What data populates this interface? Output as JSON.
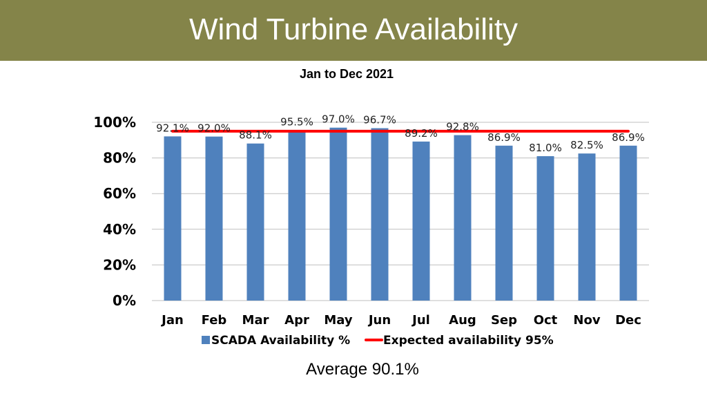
{
  "slide": {
    "title": "Wind Turbine Availability",
    "average_text": "Average 90.1%"
  },
  "colors": {
    "title_bar": "#848449",
    "bar": "#4F81BD",
    "expected_line": "#FF0000",
    "grid": "#BFBFBF"
  },
  "chart_data": {
    "type": "bar",
    "title": "Jan to Dec 2021",
    "xlabel": "",
    "ylabel": "",
    "categories": [
      "Jan",
      "Feb",
      "Mar",
      "Apr",
      "May",
      "Jun",
      "Jul",
      "Aug",
      "Sep",
      "Oct",
      "Nov",
      "Dec"
    ],
    "series": [
      {
        "name": "SCADA Availability %",
        "values": [
          92.1,
          92.0,
          88.1,
          95.5,
          97.0,
          96.7,
          89.2,
          92.8,
          86.9,
          81.0,
          82.5,
          86.9
        ],
        "labels": [
          "92.1%",
          "92.0%",
          "88.1%",
          "95.5%",
          "97.0%",
          "96.7%",
          "89.2%",
          "92.8%",
          "86.9%",
          "81.0%",
          "82.5%",
          "86.9%"
        ]
      },
      {
        "name": "Expected availability 95%",
        "type": "line",
        "value": 95
      }
    ],
    "ylim": [
      0,
      100
    ],
    "yticks": [
      0,
      20,
      40,
      60,
      80,
      100
    ],
    "ytick_labels": [
      "0%",
      "20%",
      "40%",
      "60%",
      "80%",
      "100%"
    ],
    "grid": true,
    "legend": "bottom"
  }
}
